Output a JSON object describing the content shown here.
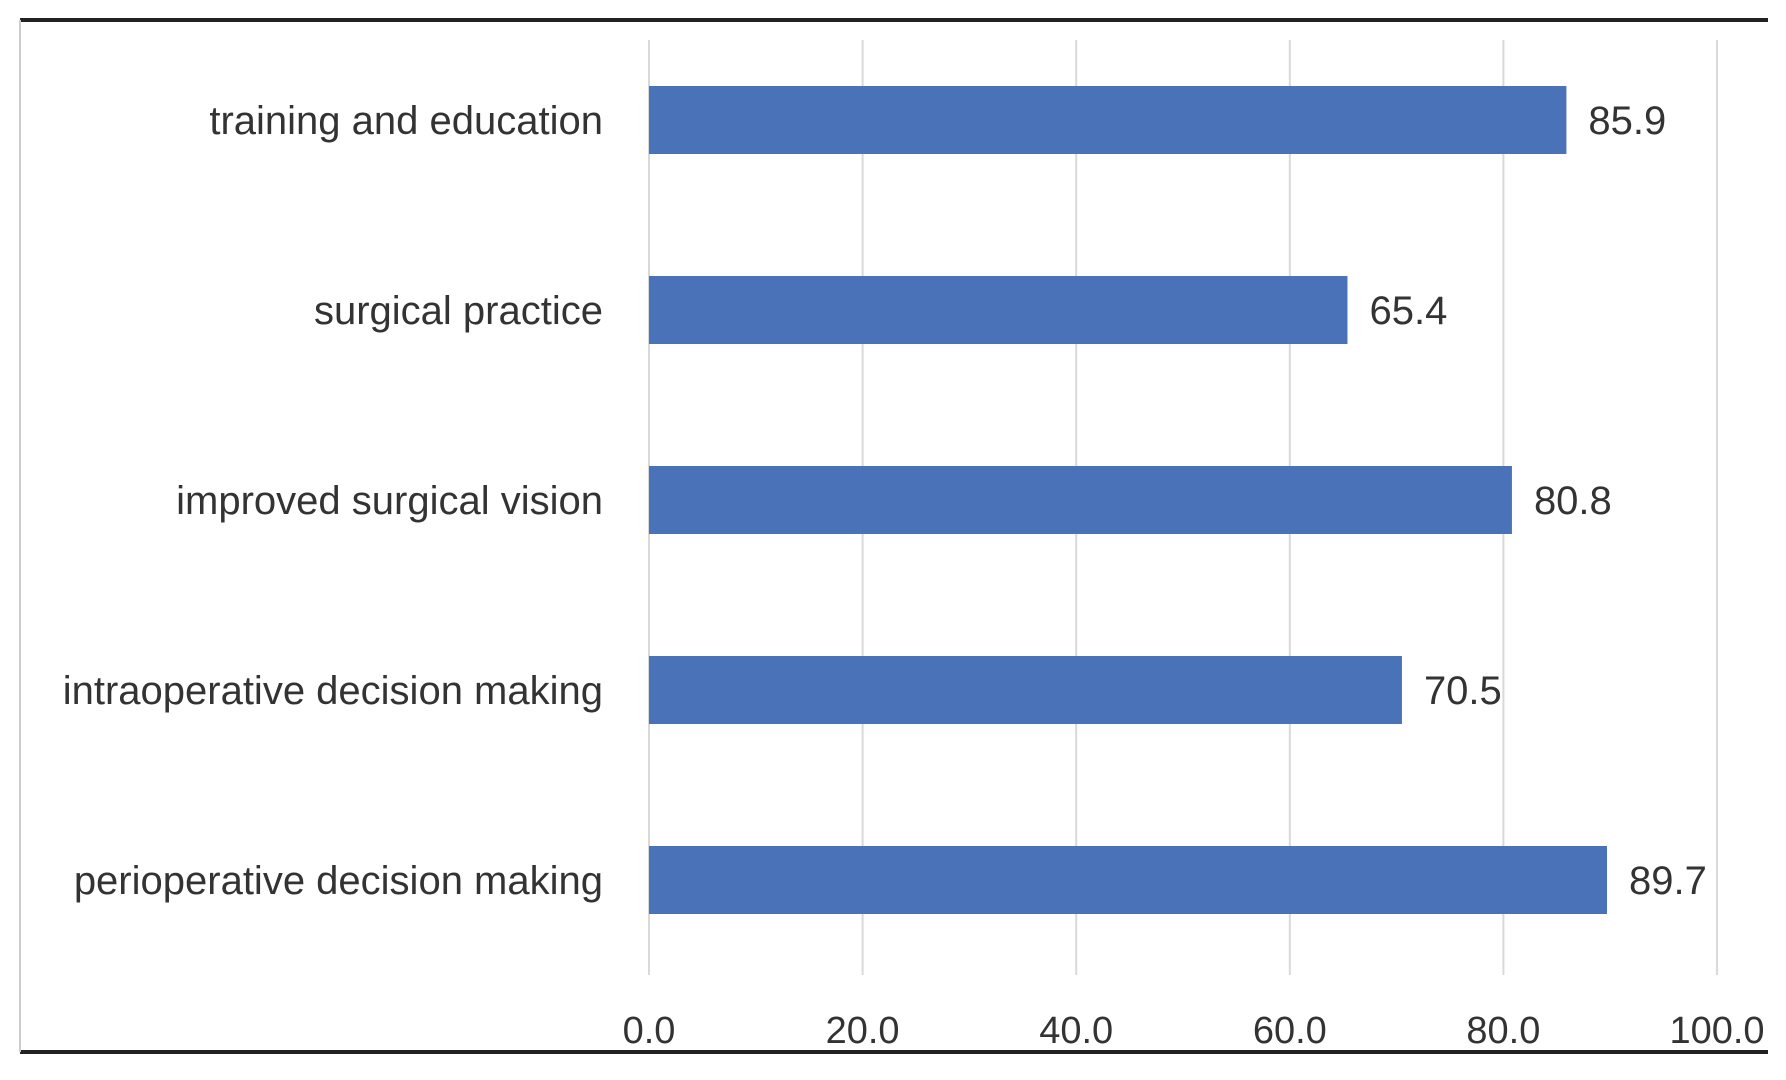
{
  "chart_data": {
    "type": "bar",
    "orientation": "horizontal",
    "title": "",
    "xlabel": "",
    "ylabel": "",
    "categories": [
      "training and education",
      "surgical practice",
      "improved surgical vision",
      "intraoperative decision making",
      "perioperative decision making"
    ],
    "values": [
      85.9,
      65.4,
      80.8,
      70.5,
      89.7
    ],
    "value_labels": [
      "85.9",
      "65.4",
      "80.8",
      "70.5",
      "89.7"
    ],
    "xlim": [
      0,
      100
    ],
    "ticks": [
      0,
      20,
      40,
      60,
      80,
      100
    ],
    "tick_labels": [
      "0.0",
      "20.0",
      "40.0",
      "60.0",
      "80.0",
      "100.0"
    ],
    "grid": true,
    "legend": "none",
    "bar_color": "#4a72b8",
    "grid_color": "#d9d9d9",
    "frame_color": "#222222",
    "text_color": "#333333"
  }
}
